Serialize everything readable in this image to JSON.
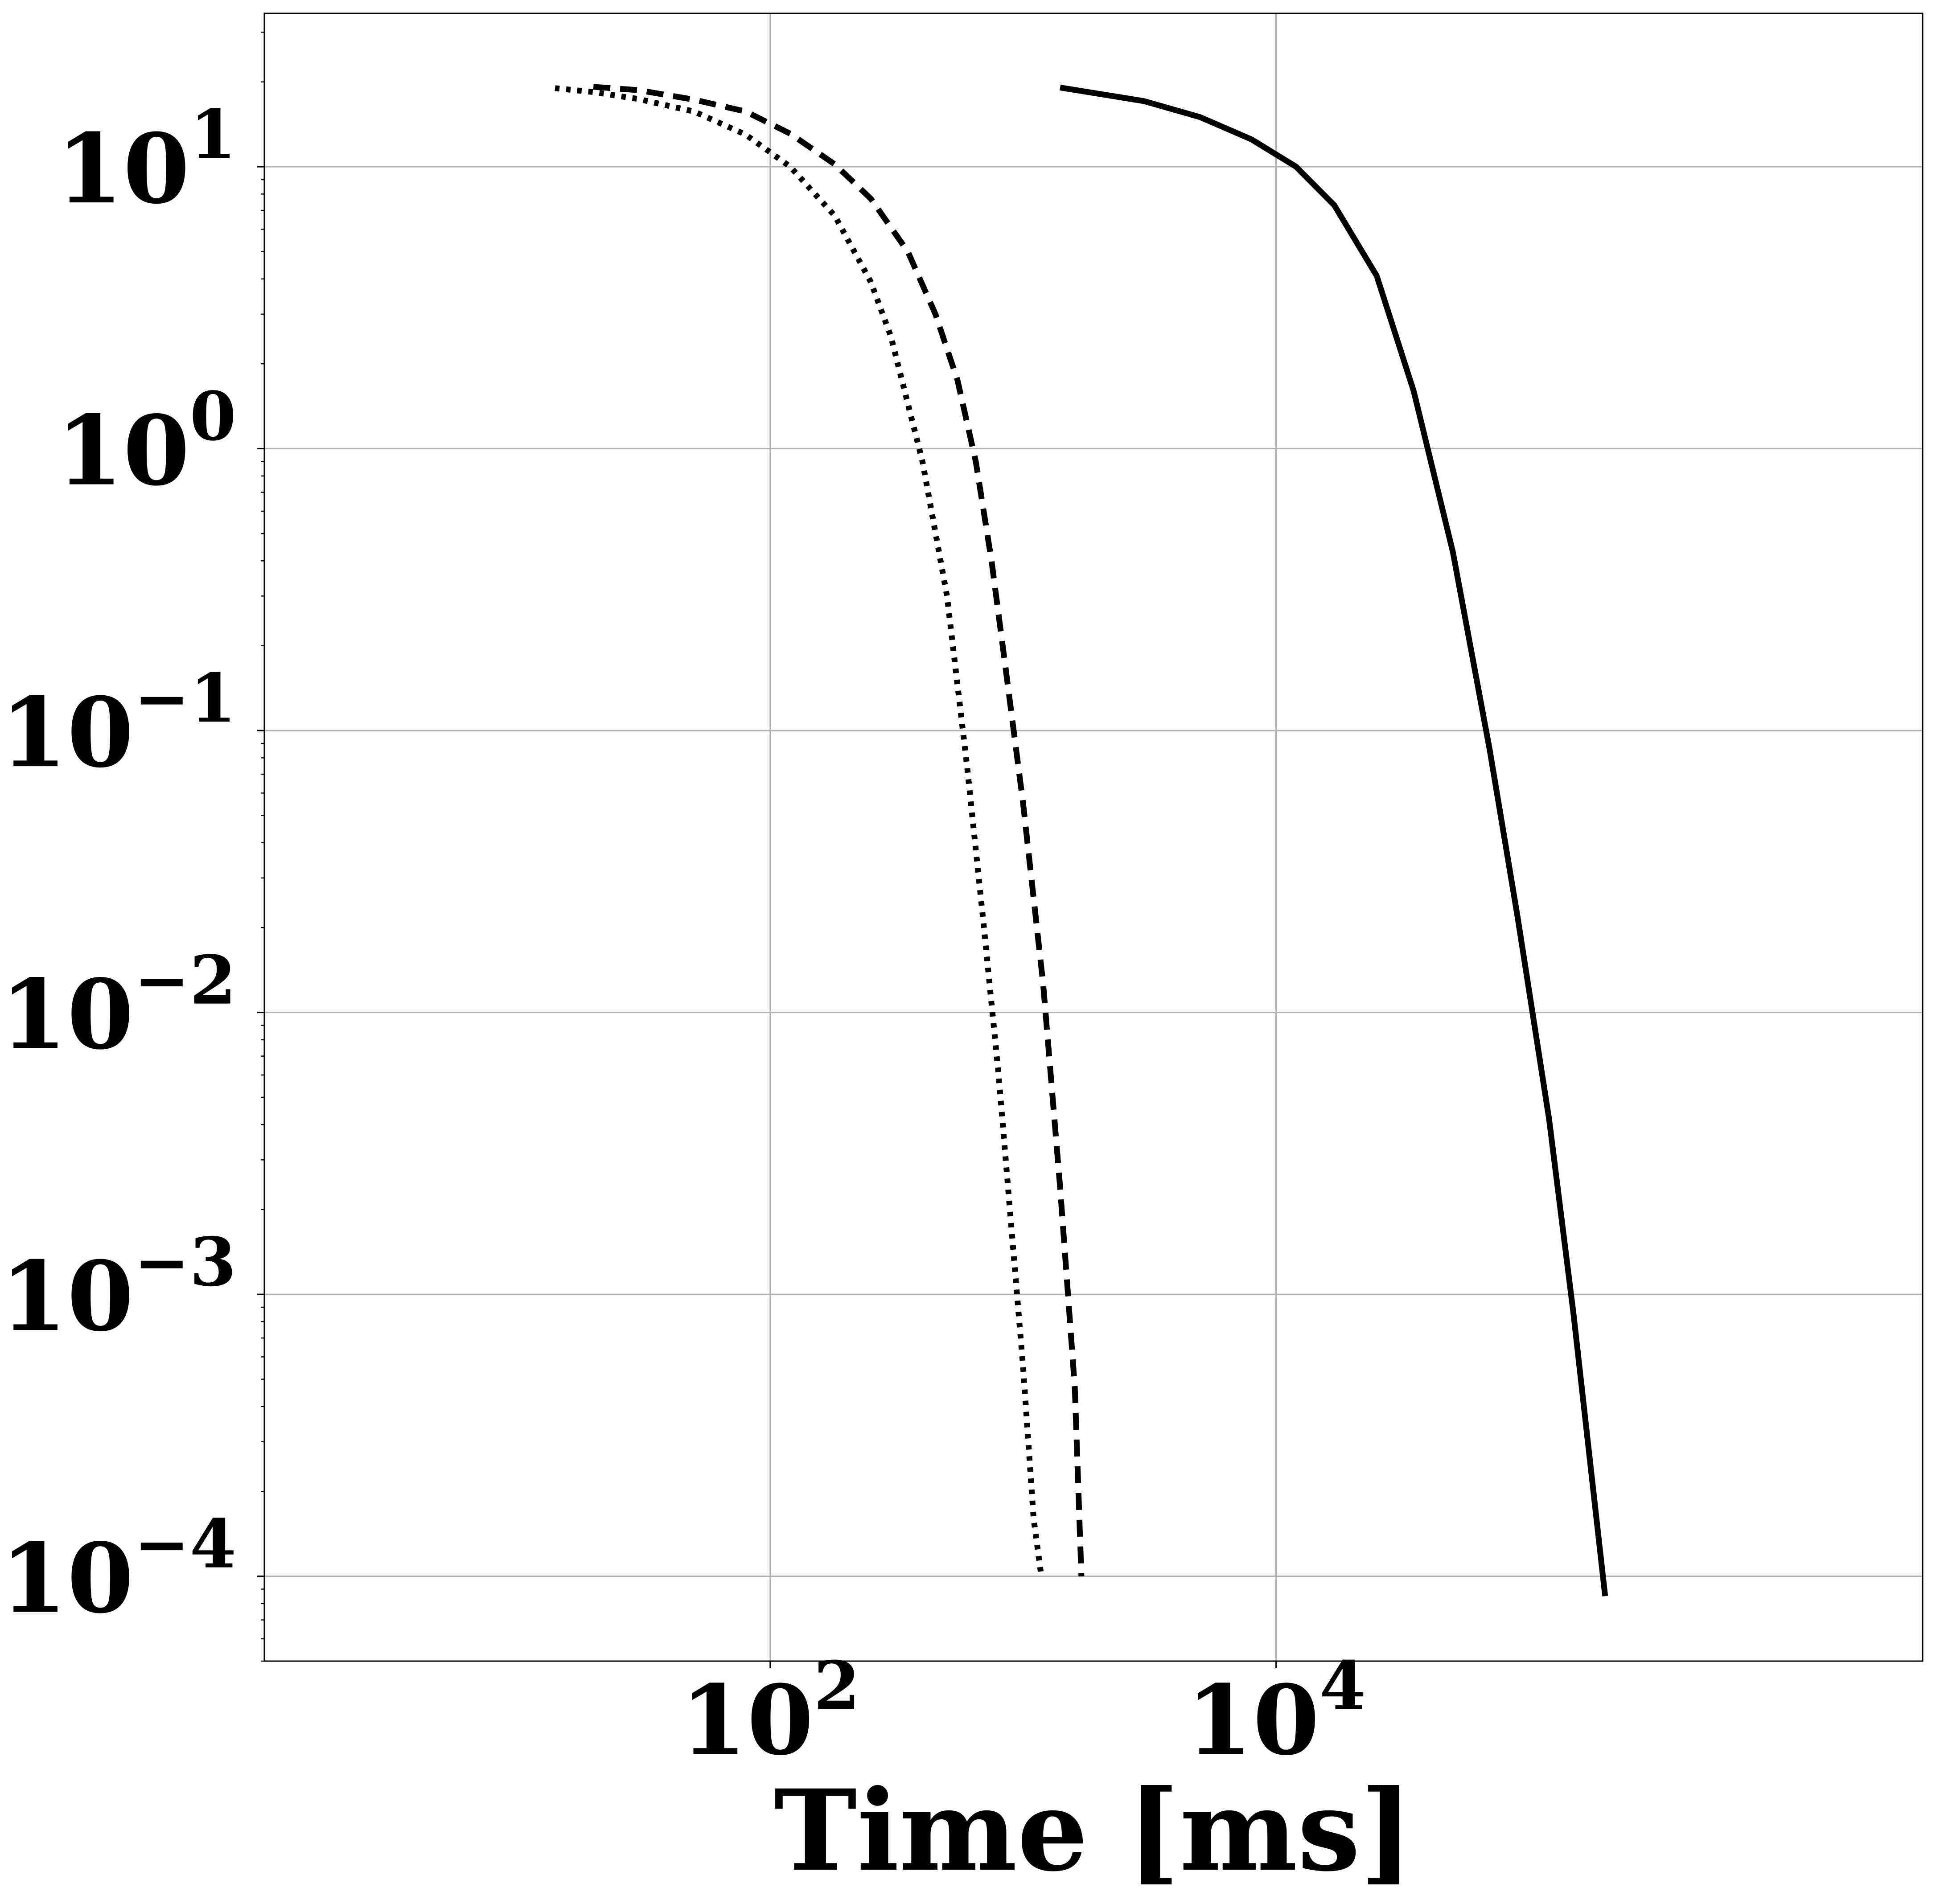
{
  "chart_data": {
    "type": "line",
    "title": "",
    "xlabel": "Time [ms]",
    "ylabel": "",
    "xscale": "log",
    "yscale": "log",
    "xlim": [
      1,
      3600000
    ],
    "ylim": [
      5e-05,
      35
    ],
    "grid": true,
    "legend": "none",
    "x_ticks": [
      {
        "base": "10",
        "exp": "2",
        "value": 100
      },
      {
        "base": "10",
        "exp": "4",
        "value": 10000
      }
    ],
    "y_ticks": [
      {
        "base": "10",
        "exp": "1",
        "value": 10
      },
      {
        "base": "10",
        "exp": "0",
        "value": 1
      },
      {
        "base": "10",
        "exp": "−1",
        "value": 0.1
      },
      {
        "base": "10",
        "exp": "−2",
        "value": 0.01
      },
      {
        "base": "10",
        "exp": "−3",
        "value": 0.001
      },
      {
        "base": "10",
        "exp": "−4",
        "value": 0.0001
      }
    ],
    "series": [
      {
        "style": "dotted",
        "color": "#000000",
        "points": [
          [
            14.1,
            19.0
          ],
          [
            20,
            18.4
          ],
          [
            30,
            17.4
          ],
          [
            50,
            15.7
          ],
          [
            80,
            13.0
          ],
          [
            120,
            10.0
          ],
          [
            180,
            6.7
          ],
          [
            250,
            3.9
          ],
          [
            300,
            2.5
          ],
          [
            400,
            0.9
          ],
          [
            500,
            0.3
          ],
          [
            600,
            0.075
          ],
          [
            700,
            0.02
          ],
          [
            800,
            0.006
          ],
          [
            900,
            0.0017
          ],
          [
            1000,
            0.00055
          ],
          [
            1100,
            0.00016
          ],
          [
            1180,
            0.0001
          ]
        ]
      },
      {
        "style": "dashed",
        "color": "#000000",
        "points": [
          [
            20,
            19.2
          ],
          [
            30,
            18.7
          ],
          [
            50,
            17.3
          ],
          [
            80,
            15.7
          ],
          [
            120,
            13.1
          ],
          [
            180,
            10.2
          ],
          [
            250,
            7.7
          ],
          [
            350,
            5.0
          ],
          [
            450,
            3.0
          ],
          [
            550,
            1.75
          ],
          [
            650,
            0.9
          ],
          [
            750,
            0.4
          ],
          [
            850,
            0.17
          ],
          [
            1000,
            0.055
          ],
          [
            1200,
            0.0126
          ],
          [
            1400,
            0.0024
          ],
          [
            1600,
            0.00047
          ],
          [
            1700,
            0.0001
          ]
        ]
      },
      {
        "style": "solid",
        "color": "#000000",
        "points": [
          [
            1400,
            19.1
          ],
          [
            3000,
            17.1
          ],
          [
            5000,
            15.0
          ],
          [
            8000,
            12.5
          ],
          [
            12000,
            10.0
          ],
          [
            17000,
            7.3
          ],
          [
            25000,
            4.1
          ],
          [
            35000,
            1.6
          ],
          [
            50000,
            0.43
          ],
          [
            70000,
            0.085
          ],
          [
            90000,
            0.022
          ],
          [
            120000,
            0.0042
          ],
          [
            150000,
            0.00085
          ],
          [
            200000,
            8.5e-05
          ]
        ]
      }
    ]
  }
}
